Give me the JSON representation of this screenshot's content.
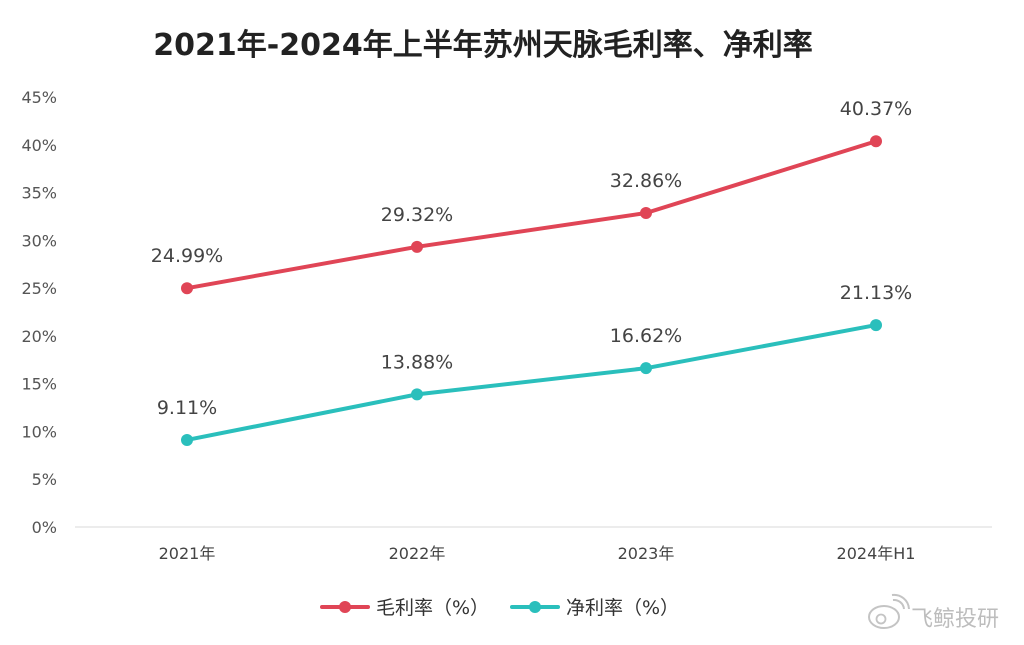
{
  "chart_data": {
    "type": "line",
    "title": "2021年-2024年上半年苏州天脉毛利率、净利率",
    "categories": [
      "2021年",
      "2022年",
      "2023年",
      "2024年H1"
    ],
    "series": [
      {
        "name": "毛利率（%）",
        "color": "#e04556",
        "values": [
          24.99,
          29.32,
          32.86,
          40.37
        ],
        "labels": [
          "24.99%",
          "29.32%",
          "32.86%",
          "40.37%"
        ]
      },
      {
        "name": "净利率（%）",
        "color": "#2abfbc",
        "values": [
          9.11,
          13.88,
          16.62,
          21.13
        ],
        "labels": [
          "9.11%",
          "13.88%",
          "16.62%",
          "21.13%"
        ]
      }
    ],
    "ylim": [
      0,
      45
    ],
    "yticks": [
      "0%",
      "5%",
      "10%",
      "15%",
      "20%",
      "25%",
      "30%",
      "35%",
      "40%",
      "45%"
    ],
    "grid": false,
    "legend_position": "bottom"
  },
  "watermark": {
    "text": "飞鲸投研",
    "icon": "weibo-logo-icon"
  }
}
